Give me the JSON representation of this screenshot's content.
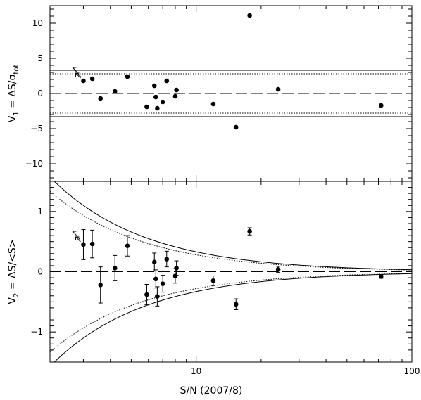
{
  "chart_data": [
    {
      "type": "scatter",
      "panel": "top",
      "ylabel": {
        "main": "V",
        "sub": "1",
        "eq": " = ΔS/σ",
        "sub2": "tot"
      },
      "ylim": [
        -12.5,
        12.5
      ],
      "yticks": [
        10,
        5,
        0,
        -5,
        -10
      ],
      "ytick_labels": [
        "10",
        "5",
        "0",
        "−5",
        "−10"
      ],
      "xscale": "log",
      "xlim": [
        2.1,
        100
      ],
      "lines": {
        "dashed": 0,
        "solid": [
          3.3,
          -3.3
        ],
        "dotted": [
          2.8,
          -2.8
        ]
      },
      "points": [
        {
          "x": 3.0,
          "y": 1.8
        },
        {
          "x": 3.3,
          "y": 2.1
        },
        {
          "x": 3.6,
          "y": -0.7
        },
        {
          "x": 4.2,
          "y": 0.3
        },
        {
          "x": 4.8,
          "y": 2.4
        },
        {
          "x": 5.9,
          "y": -1.9
        },
        {
          "x": 6.4,
          "y": 1.1
        },
        {
          "x": 6.5,
          "y": -0.5
        },
        {
          "x": 6.6,
          "y": -2.1
        },
        {
          "x": 7.0,
          "y": -1.2
        },
        {
          "x": 7.3,
          "y": 1.8
        },
        {
          "x": 8.0,
          "y": -0.4
        },
        {
          "x": 8.1,
          "y": 0.5
        },
        {
          "x": 12.0,
          "y": -1.5
        },
        {
          "x": 15.3,
          "y": -4.8
        },
        {
          "x": 17.7,
          "y": 11.1
        },
        {
          "x": 24.0,
          "y": 0.6
        },
        {
          "x": 72.0,
          "y": -1.7
        }
      ],
      "arrows": [
        {
          "x": 3.0,
          "y": 1.8,
          "dir": "up-left"
        },
        {
          "x": 3.0,
          "y": 1.8,
          "dir": "up-left-long"
        }
      ]
    },
    {
      "type": "scatter",
      "panel": "bottom",
      "xlabel": "S/N (2007/8)",
      "ylabel": {
        "main": "V",
        "sub": "2",
        "eq": " = ΔS/<S>"
      },
      "ylim": [
        -1.5,
        1.5
      ],
      "yticks": [
        1,
        0,
        -1
      ],
      "ytick_labels": [
        "1",
        "0",
        "−1"
      ],
      "xscale": "log",
      "xlim": [
        2.1,
        100
      ],
      "xticks": [
        10,
        100
      ],
      "xtick_labels": [
        "10",
        "100"
      ],
      "curves": {
        "solid_coeff": 3.3,
        "dotted_coeff": 2.8
      },
      "points": [
        {
          "x": 3.0,
          "y": 0.45,
          "err": 0.25
        },
        {
          "x": 3.3,
          "y": 0.46,
          "err": 0.23
        },
        {
          "x": 3.6,
          "y": -0.22,
          "err": 0.3
        },
        {
          "x": 4.2,
          "y": 0.06,
          "err": 0.21
        },
        {
          "x": 4.8,
          "y": 0.43,
          "err": 0.17
        },
        {
          "x": 5.9,
          "y": -0.38,
          "err": 0.17
        },
        {
          "x": 6.4,
          "y": 0.16,
          "err": 0.15
        },
        {
          "x": 6.5,
          "y": -0.12,
          "err": 0.15
        },
        {
          "x": 6.6,
          "y": -0.41,
          "err": 0.16
        },
        {
          "x": 7.0,
          "y": -0.2,
          "err": 0.14
        },
        {
          "x": 7.3,
          "y": 0.21,
          "err": 0.13
        },
        {
          "x": 8.0,
          "y": -0.07,
          "err": 0.12
        },
        {
          "x": 8.1,
          "y": 0.06,
          "err": 0.12
        },
        {
          "x": 12.0,
          "y": -0.15,
          "err": 0.08
        },
        {
          "x": 15.3,
          "y": -0.54,
          "err": 0.09
        },
        {
          "x": 17.7,
          "y": 0.67,
          "err": 0.06
        },
        {
          "x": 24.0,
          "y": 0.04,
          "err": 0.05
        },
        {
          "x": 72.0,
          "y": -0.08,
          "err": 0.03
        }
      ],
      "arrows": [
        {
          "x": 3.0,
          "y": 0.45,
          "dir": "up-left"
        },
        {
          "x": 3.0,
          "y": 0.45,
          "dir": "up-left-long"
        }
      ]
    }
  ]
}
